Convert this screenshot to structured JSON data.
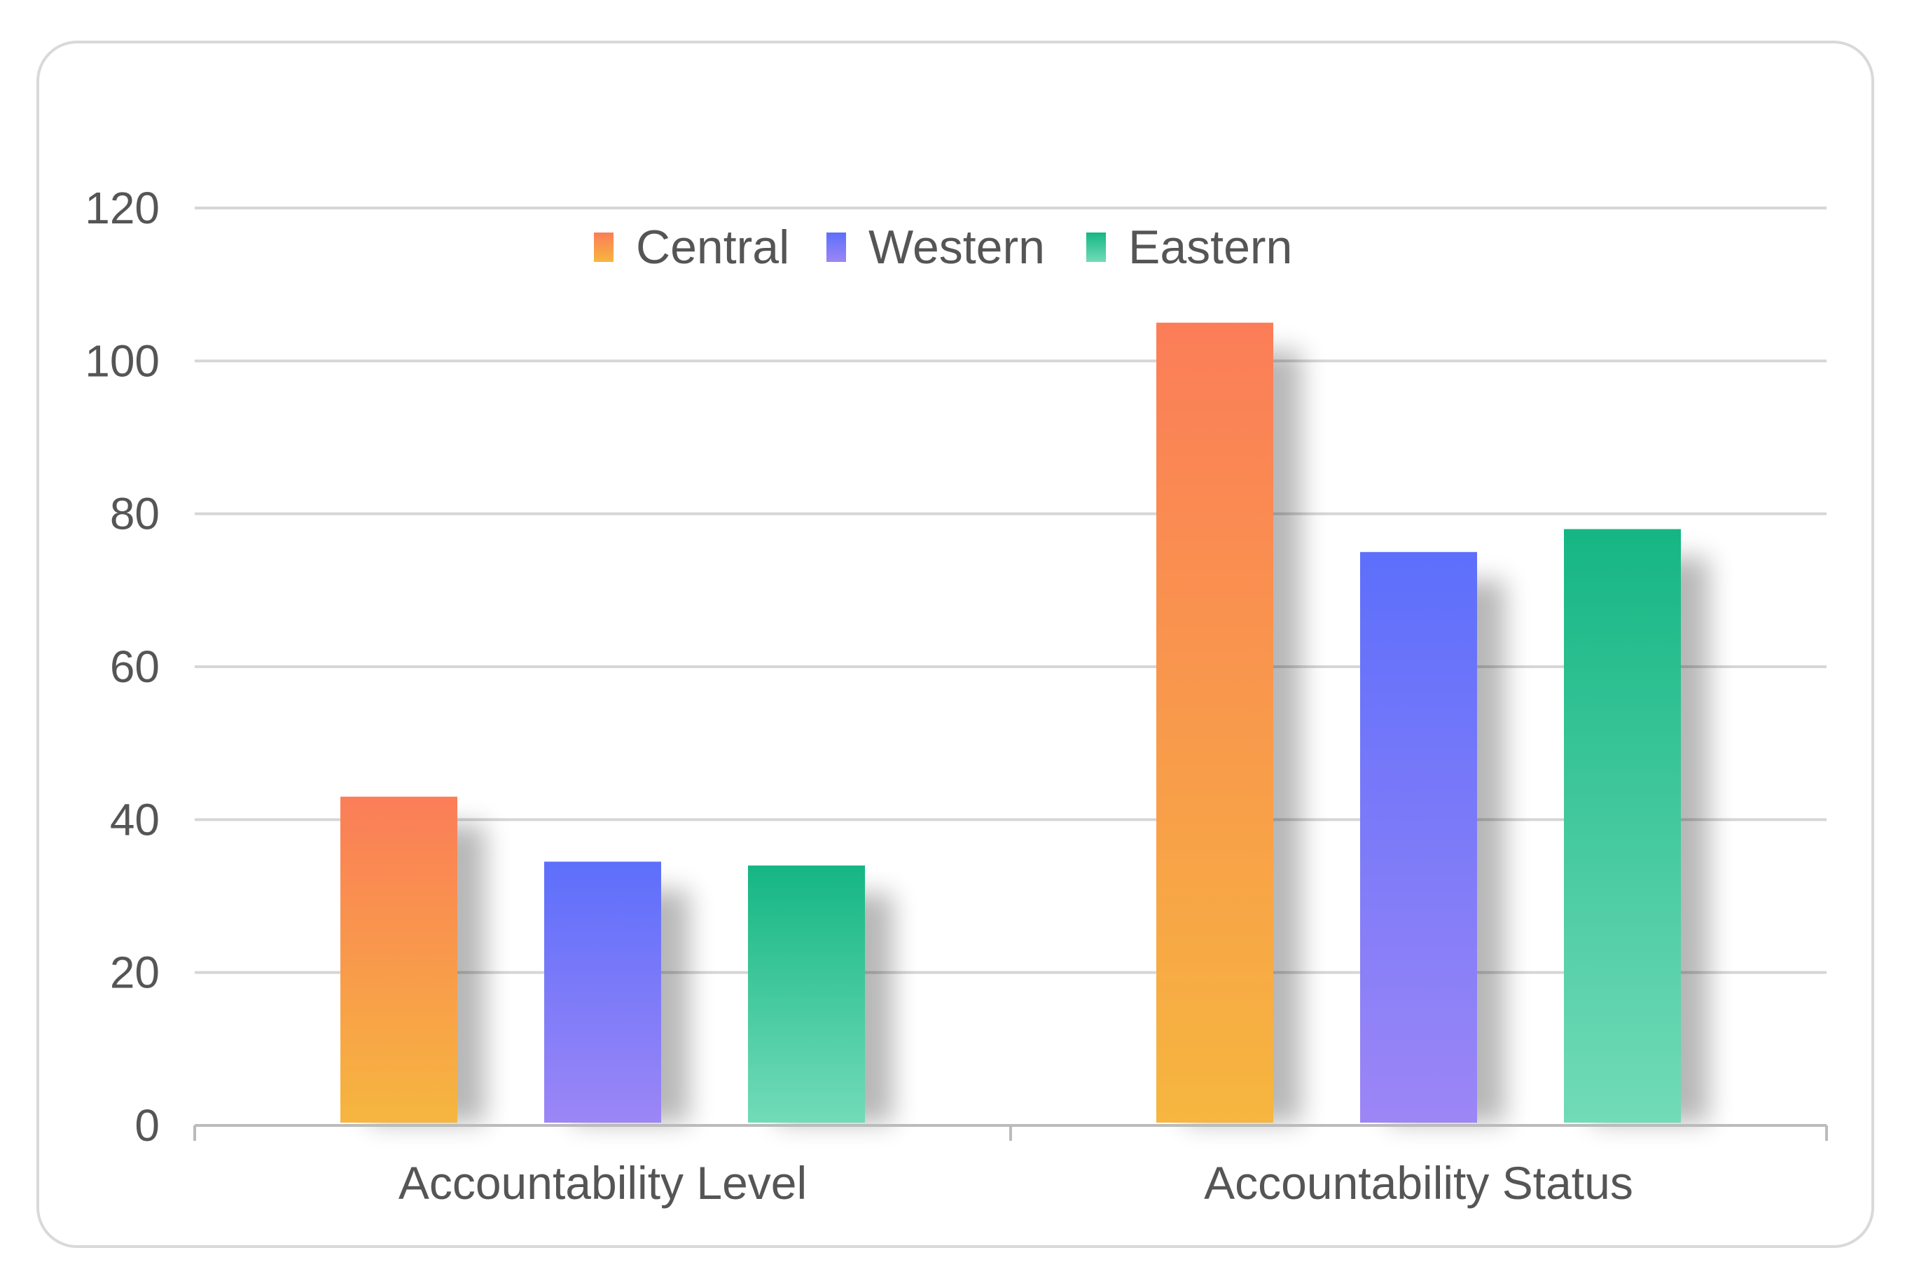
{
  "chart_data": {
    "type": "bar",
    "title": "",
    "xlabel": "",
    "ylabel": "",
    "categories": [
      "Accountability Level",
      "Accountability Status"
    ],
    "series": [
      {
        "name": "Central",
        "values": [
          43,
          105
        ],
        "color_top": "#fb7d58",
        "color_bottom": "#f6b63f"
      },
      {
        "name": "Western",
        "values": [
          34.5,
          75
        ],
        "color_top": "#5d6ffb",
        "color_bottom": "#9c86f6"
      },
      {
        "name": "Eastern",
        "values": [
          34,
          78
        ],
        "color_top": "#15b683",
        "color_bottom": "#72dbb8"
      }
    ],
    "ylim": [
      0,
      120
    ],
    "yticks": [
      "0",
      "20",
      "40",
      "60",
      "80",
      "100",
      "120"
    ],
    "grid": true,
    "legend_position": "top-center"
  }
}
